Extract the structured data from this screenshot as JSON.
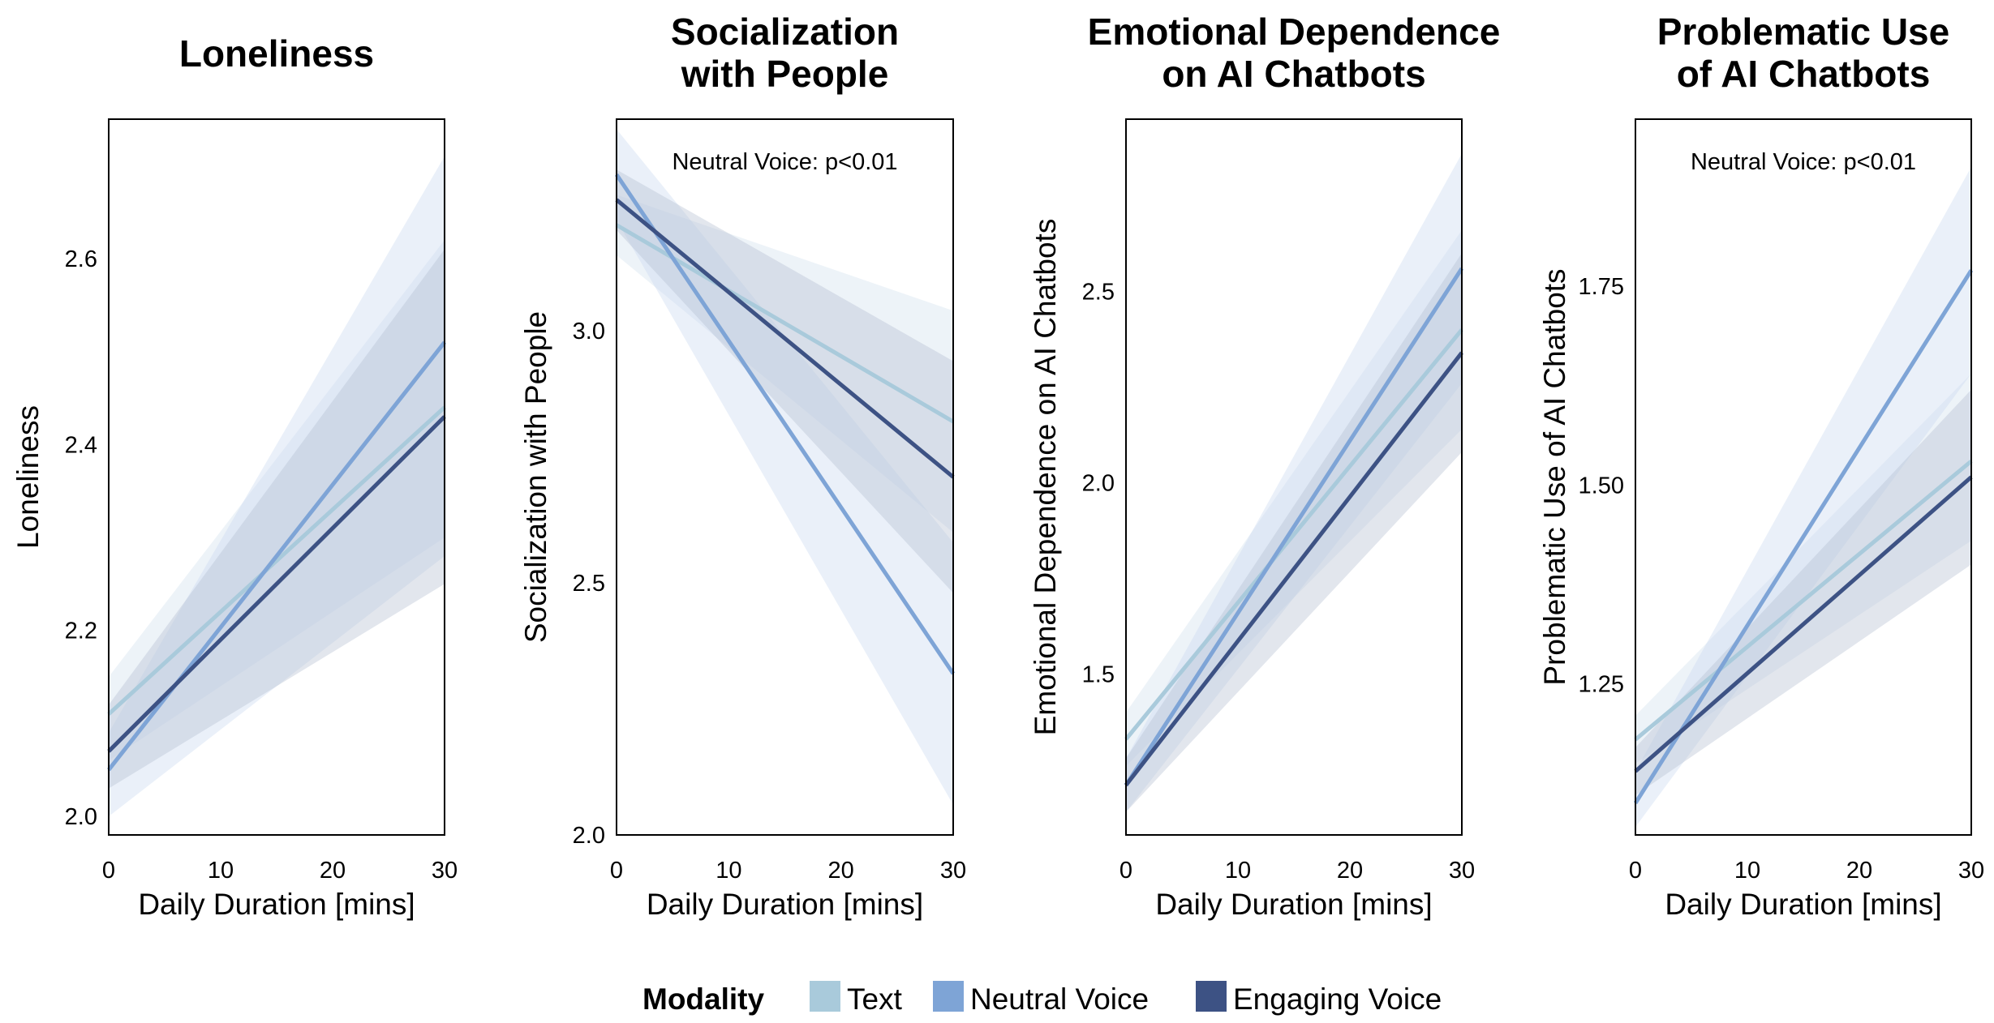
{
  "colors": {
    "Text": "#a9cadb",
    "Neutral Voice": "#7ea4d6",
    "Engaging Voice": "#3d5284",
    "band_Text": "#cfe0ec",
    "band_Neutral Voice": "#c9d8ee",
    "band_Engaging Voice": "#b3bccf"
  },
  "legend": {
    "title": "Modality",
    "items": [
      "Text",
      "Neutral Voice",
      "Engaging Voice"
    ]
  },
  "chart_data": [
    {
      "type": "line",
      "title": [
        "Loneliness"
      ],
      "ylabel": "Loneliness",
      "xlabel": "Daily Duration [mins]",
      "xlim": [
        0,
        30
      ],
      "ylim": [
        1.98,
        2.75
      ],
      "xticks": [
        0,
        10,
        20,
        30
      ],
      "yticks": [
        2.0,
        2.2,
        2.4,
        2.6
      ],
      "ytick_labels": [
        "2.0",
        "2.2",
        "2.4",
        "2.6"
      ],
      "annotation": "",
      "series": [
        {
          "name": "Text",
          "x": [
            0,
            30
          ],
          "values": [
            2.11,
            2.44
          ],
          "lower": [
            2.06,
            2.3
          ],
          "upper": [
            2.15,
            2.62
          ]
        },
        {
          "name": "Neutral Voice",
          "x": [
            0,
            30
          ],
          "values": [
            2.05,
            2.51
          ],
          "lower": [
            2.0,
            2.28
          ],
          "upper": [
            2.09,
            2.71
          ]
        },
        {
          "name": "Engaging Voice",
          "x": [
            0,
            30
          ],
          "values": [
            2.07,
            2.43
          ],
          "lower": [
            2.03,
            2.25
          ],
          "upper": [
            2.12,
            2.61
          ]
        }
      ]
    },
    {
      "type": "line",
      "title": [
        "Socialization",
        "with People"
      ],
      "ylabel": "Socialization with People",
      "xlabel": "Daily Duration [mins]",
      "xlim": [
        0,
        30
      ],
      "ylim": [
        2.0,
        3.42
      ],
      "xticks": [
        0,
        10,
        20,
        30
      ],
      "yticks": [
        2.0,
        2.5,
        3.0
      ],
      "ytick_labels": [
        "2.0",
        "2.5",
        "3.0"
      ],
      "annotation": "Neutral Voice: p<0.01",
      "series": [
        {
          "name": "Text",
          "x": [
            0,
            30
          ],
          "values": [
            3.21,
            2.82
          ],
          "lower": [
            3.15,
            2.6
          ],
          "upper": [
            3.27,
            3.04
          ]
        },
        {
          "name": "Neutral Voice",
          "x": [
            0,
            30
          ],
          "values": [
            3.31,
            2.32
          ],
          "lower": [
            3.22,
            2.06
          ],
          "upper": [
            3.4,
            2.58
          ]
        },
        {
          "name": "Engaging Voice",
          "x": [
            0,
            30
          ],
          "values": [
            3.26,
            2.71
          ],
          "lower": [
            3.2,
            2.48
          ],
          "upper": [
            3.32,
            2.94
          ]
        }
      ]
    },
    {
      "type": "line",
      "title": [
        "Emotional Dependence",
        "on AI Chatbots"
      ],
      "ylabel": "Emotional Dependence on AI Chatbots",
      "xlabel": "Daily Duration [mins]",
      "xlim": [
        0,
        30
      ],
      "ylim": [
        1.08,
        2.95
      ],
      "xticks": [
        0,
        10,
        20,
        30
      ],
      "yticks": [
        1.5,
        2.0,
        2.5
      ],
      "ytick_labels": [
        "1.5",
        "2.0",
        "2.5"
      ],
      "annotation": "",
      "series": [
        {
          "name": "Text",
          "x": [
            0,
            30
          ],
          "values": [
            1.33,
            2.4
          ],
          "lower": [
            1.26,
            2.14
          ],
          "upper": [
            1.4,
            2.66
          ]
        },
        {
          "name": "Neutral Voice",
          "x": [
            0,
            30
          ],
          "values": [
            1.21,
            2.56
          ],
          "lower": [
            1.14,
            2.26
          ],
          "upper": [
            1.28,
            2.86
          ]
        },
        {
          "name": "Engaging Voice",
          "x": [
            0,
            30
          ],
          "values": [
            1.21,
            2.34
          ],
          "lower": [
            1.14,
            2.08
          ],
          "upper": [
            1.28,
            2.6
          ]
        }
      ]
    },
    {
      "type": "line",
      "title": [
        "Problematic Use",
        "of AI Chatbots"
      ],
      "ylabel": "Problematic Use of AI Chatbots",
      "xlabel": "Daily Duration [mins]",
      "xlim": [
        0,
        30
      ],
      "ylim": [
        1.06,
        1.96
      ],
      "xticks": [
        0,
        10,
        20,
        30
      ],
      "yticks": [
        1.25,
        1.5,
        1.75
      ],
      "ytick_labels": [
        "1.25",
        "1.50",
        "1.75"
      ],
      "annotation": "Neutral Voice: p<0.01",
      "series": [
        {
          "name": "Text",
          "x": [
            0,
            30
          ],
          "values": [
            1.18,
            1.53
          ],
          "lower": [
            1.15,
            1.43
          ],
          "upper": [
            1.21,
            1.64
          ]
        },
        {
          "name": "Neutral Voice",
          "x": [
            0,
            30
          ],
          "values": [
            1.1,
            1.77
          ],
          "lower": [
            1.07,
            1.64
          ],
          "upper": [
            1.14,
            1.9
          ]
        },
        {
          "name": "Engaging Voice",
          "x": [
            0,
            30
          ],
          "values": [
            1.14,
            1.51
          ],
          "lower": [
            1.11,
            1.4
          ],
          "upper": [
            1.17,
            1.62
          ]
        }
      ]
    }
  ]
}
